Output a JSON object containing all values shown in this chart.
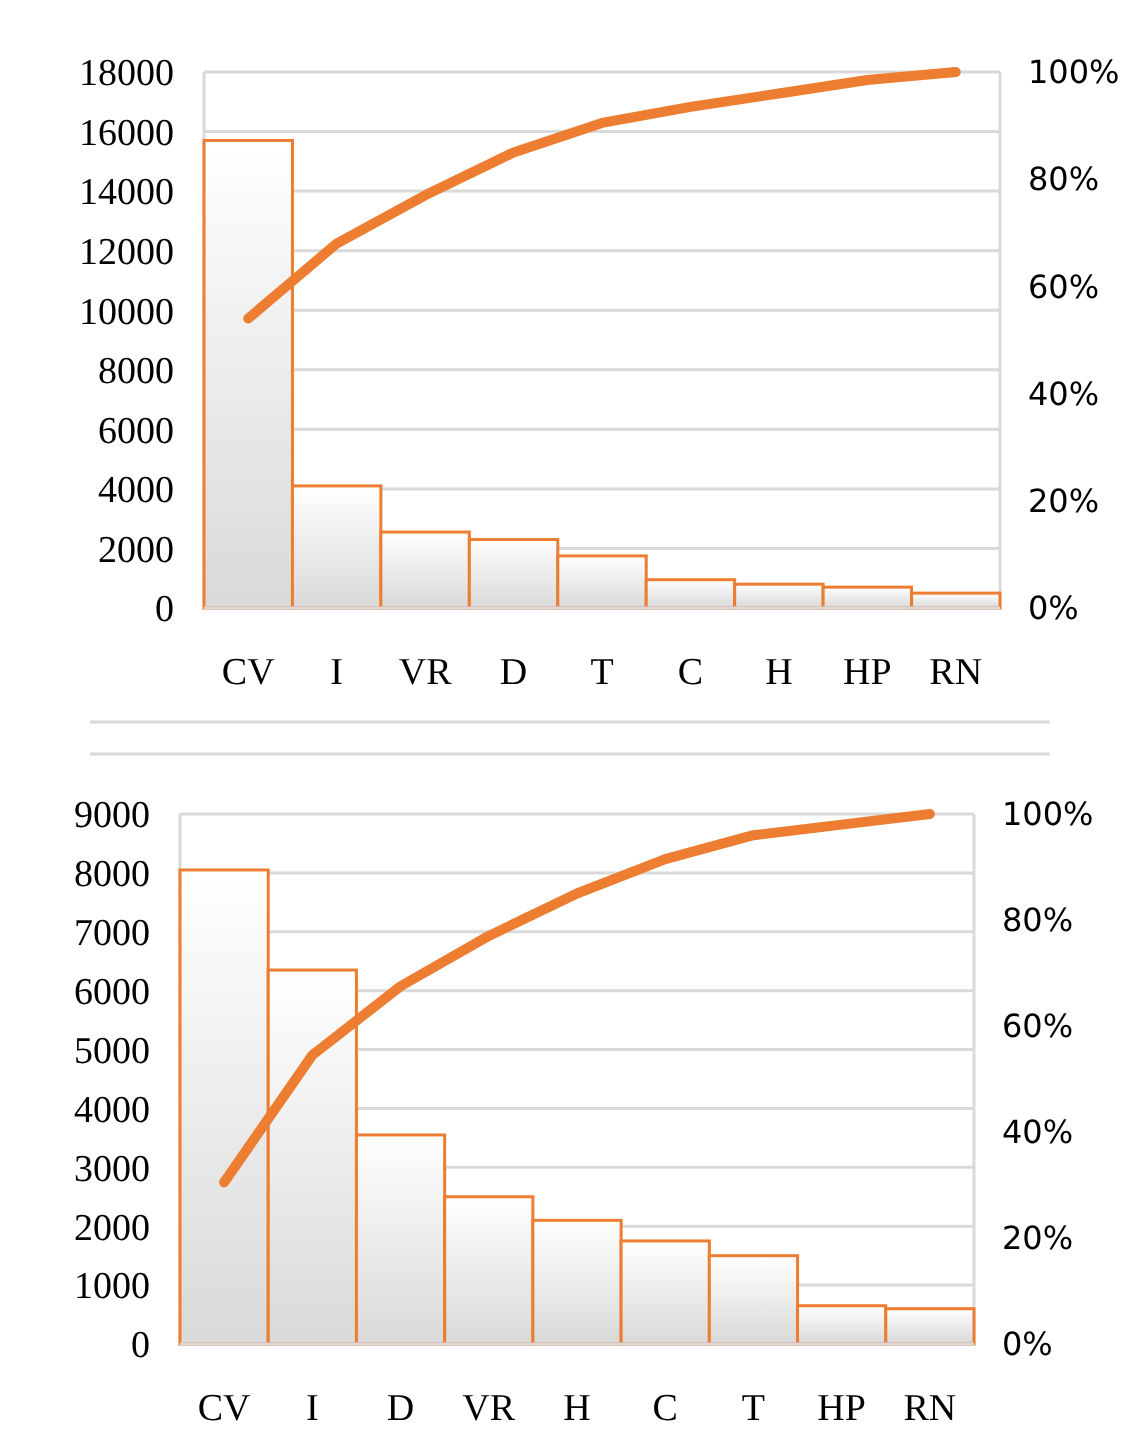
{
  "chart_data": [
    {
      "type": "bar",
      "categories": [
        "CV",
        "I",
        "VR",
        "D",
        "T",
        "C",
        "H",
        "HP",
        "RN"
      ],
      "series": [
        {
          "color": "#ed7d31",
          "values": [
            15700,
            4100,
            2550,
            2300,
            1750,
            950,
            800,
            700,
            500
          ]
        },
        {
          "type": "line",
          "axis": "y2",
          "color": "#ed7d31",
          "values": [
            54,
            68,
            77,
            85,
            90.5,
            93.5,
            96,
            98.5,
            100
          ]
        }
      ],
      "ylim": [
        0,
        18000
      ],
      "yticks": [
        0,
        2000,
        4000,
        6000,
        8000,
        10000,
        12000,
        14000,
        16000,
        18000
      ],
      "y2lim": [
        0,
        100
      ],
      "y2ticks": [
        {
          "value": 0,
          "label": "0%"
        },
        {
          "value": 20,
          "label": "20%"
        },
        {
          "value": 40,
          "label": "40%"
        },
        {
          "value": 60,
          "label": "60%"
        },
        {
          "value": 80,
          "label": "80%"
        },
        {
          "value": 100,
          "label": "100%"
        }
      ],
      "grid": "y",
      "marker": "none",
      "line_style": "solid"
    },
    {
      "type": "bar",
      "categories": [
        "CV",
        "I",
        "D",
        "VR",
        "H",
        "C",
        "T",
        "HP",
        "RN"
      ],
      "series": [
        {
          "color": "#ed7d31",
          "values": [
            8050,
            6350,
            3550,
            2500,
            2100,
            1750,
            1500,
            650,
            600
          ]
        },
        {
          "type": "line",
          "axis": "y2",
          "color": "#ed7d31",
          "values": [
            30.5,
            54.5,
            67.5,
            77,
            85,
            91.5,
            96,
            98,
            100
          ]
        }
      ],
      "ylim": [
        0,
        9000
      ],
      "yticks": [
        0,
        1000,
        2000,
        3000,
        4000,
        5000,
        6000,
        7000,
        8000,
        9000
      ],
      "y2lim": [
        0,
        100
      ],
      "y2ticks": [
        {
          "value": 0,
          "label": "0%"
        },
        {
          "value": 20,
          "label": "20%"
        },
        {
          "value": 40,
          "label": "40%"
        },
        {
          "value": 60,
          "label": "60%"
        },
        {
          "value": 80,
          "label": "80%"
        },
        {
          "value": 100,
          "label": "100%"
        }
      ],
      "grid": "y",
      "marker": "none",
      "line_style": "solid"
    }
  ]
}
